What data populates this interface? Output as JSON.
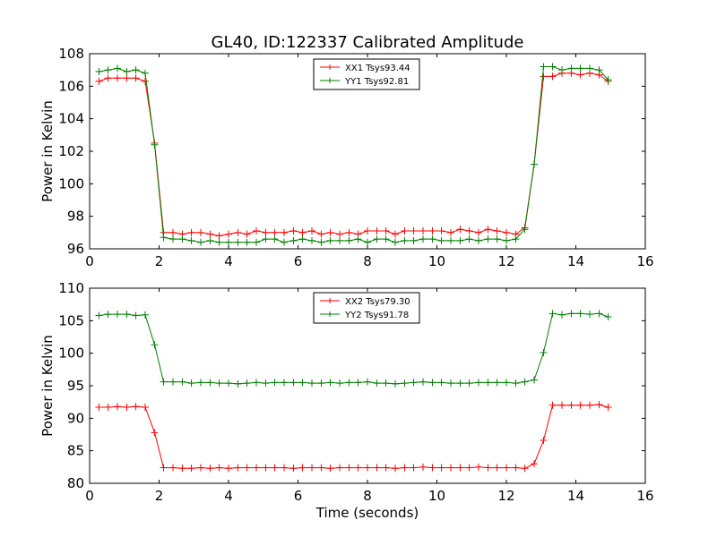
{
  "title": "GL40, ID:122337 Calibrated Amplitude",
  "chart_data": [
    {
      "type": "line",
      "title": "GL40, ID:122337 Calibrated Amplitude",
      "xlabel": "",
      "ylabel": "Power in Kelvin",
      "xlim": [
        0,
        16
      ],
      "ylim": [
        96,
        108
      ],
      "xticks": [
        "0",
        "2",
        "4",
        "6",
        "8",
        "10",
        "12",
        "14",
        "16"
      ],
      "yticks": [
        "96",
        "98",
        "100",
        "102",
        "104",
        "106",
        "108"
      ],
      "grid": false,
      "legend_position": "top-center",
      "x": [
        0.27,
        0.53,
        0.8,
        1.07,
        1.33,
        1.6,
        1.87,
        2.13,
        2.4,
        2.67,
        2.93,
        3.2,
        3.47,
        3.73,
        4.0,
        4.27,
        4.53,
        4.8,
        5.07,
        5.33,
        5.6,
        5.87,
        6.13,
        6.4,
        6.67,
        6.93,
        7.2,
        7.47,
        7.73,
        8.0,
        8.27,
        8.53,
        8.8,
        9.07,
        9.33,
        9.6,
        9.87,
        10.13,
        10.4,
        10.67,
        10.93,
        11.2,
        11.47,
        11.73,
        12.0,
        12.27,
        12.53,
        12.8,
        13.07,
        13.33,
        13.6,
        13.87,
        14.13,
        14.4,
        14.67,
        14.93
      ],
      "series": [
        {
          "name": "XX1 Tsys93.44",
          "color": "#ff0000",
          "values": [
            106.3,
            106.5,
            106.5,
            106.5,
            106.5,
            106.3,
            102.5,
            97.0,
            97.0,
            96.9,
            97.0,
            97.0,
            96.9,
            96.8,
            96.9,
            97.0,
            96.9,
            97.1,
            97.0,
            97.0,
            97.0,
            97.1,
            97.0,
            97.1,
            96.9,
            97.0,
            96.9,
            97.0,
            96.9,
            97.1,
            97.1,
            97.1,
            96.9,
            97.1,
            97.1,
            97.1,
            97.1,
            97.1,
            97.0,
            97.2,
            97.1,
            97.0,
            97.2,
            97.1,
            97.0,
            96.9,
            97.3,
            101.2,
            106.6,
            106.6,
            106.8,
            106.8,
            106.7,
            106.8,
            106.7,
            106.3
          ]
        },
        {
          "name": "YY1 Tsys92.81",
          "color": "#008000",
          "values": [
            106.9,
            107.0,
            107.1,
            106.9,
            107.0,
            106.8,
            102.4,
            96.7,
            96.6,
            96.6,
            96.5,
            96.4,
            96.5,
            96.4,
            96.4,
            96.4,
            96.4,
            96.4,
            96.6,
            96.6,
            96.4,
            96.5,
            96.6,
            96.5,
            96.4,
            96.5,
            96.5,
            96.5,
            96.6,
            96.4,
            96.6,
            96.6,
            96.4,
            96.5,
            96.5,
            96.6,
            96.6,
            96.5,
            96.5,
            96.5,
            96.6,
            96.5,
            96.6,
            96.6,
            96.5,
            96.6,
            97.2,
            101.2,
            107.2,
            107.2,
            107.0,
            107.1,
            107.1,
            107.1,
            107.0,
            106.4
          ]
        }
      ]
    },
    {
      "type": "line",
      "title": "",
      "xlabel": "Time (seconds)",
      "ylabel": "Power in Kelvin",
      "xlim": [
        0,
        16
      ],
      "ylim": [
        80,
        110
      ],
      "xticks": [
        "0",
        "2",
        "4",
        "6",
        "8",
        "10",
        "12",
        "14",
        "16"
      ],
      "yticks": [
        "80",
        "85",
        "90",
        "95",
        "100",
        "105",
        "110"
      ],
      "grid": false,
      "legend_position": "top-center",
      "x": [
        0.27,
        0.53,
        0.8,
        1.07,
        1.33,
        1.6,
        1.87,
        2.13,
        2.4,
        2.67,
        2.93,
        3.2,
        3.47,
        3.73,
        4.0,
        4.27,
        4.53,
        4.8,
        5.07,
        5.33,
        5.6,
        5.87,
        6.13,
        6.4,
        6.67,
        6.93,
        7.2,
        7.47,
        7.73,
        8.0,
        8.27,
        8.53,
        8.8,
        9.07,
        9.33,
        9.6,
        9.87,
        10.13,
        10.4,
        10.67,
        10.93,
        11.2,
        11.47,
        11.73,
        12.0,
        12.27,
        12.53,
        12.8,
        13.07,
        13.33,
        13.6,
        13.87,
        14.13,
        14.4,
        14.67,
        14.93
      ],
      "series": [
        {
          "name": "XX2 Tsys79.30",
          "color": "#ff0000",
          "values": [
            91.7,
            91.7,
            91.8,
            91.7,
            91.8,
            91.7,
            87.8,
            82.4,
            82.4,
            82.3,
            82.3,
            82.4,
            82.3,
            82.4,
            82.3,
            82.4,
            82.4,
            82.4,
            82.4,
            82.4,
            82.4,
            82.3,
            82.4,
            82.4,
            82.4,
            82.3,
            82.4,
            82.4,
            82.4,
            82.4,
            82.4,
            82.4,
            82.3,
            82.4,
            82.4,
            82.5,
            82.4,
            82.4,
            82.4,
            82.4,
            82.4,
            82.5,
            82.4,
            82.4,
            82.4,
            82.4,
            82.3,
            83.0,
            86.6,
            92.0,
            92.0,
            92.0,
            92.0,
            92.0,
            92.1,
            91.7
          ]
        },
        {
          "name": "YY2 Tsys91.78",
          "color": "#008000",
          "values": [
            105.8,
            106.0,
            106.0,
            106.0,
            105.8,
            105.9,
            101.3,
            95.6,
            95.6,
            95.6,
            95.4,
            95.5,
            95.5,
            95.4,
            95.4,
            95.3,
            95.4,
            95.5,
            95.4,
            95.5,
            95.5,
            95.5,
            95.5,
            95.4,
            95.4,
            95.5,
            95.4,
            95.5,
            95.5,
            95.6,
            95.4,
            95.4,
            95.3,
            95.4,
            95.5,
            95.6,
            95.5,
            95.5,
            95.4,
            95.4,
            95.4,
            95.5,
            95.5,
            95.5,
            95.5,
            95.4,
            95.6,
            95.9,
            100.1,
            106.1,
            105.9,
            106.1,
            106.1,
            106.0,
            106.1,
            105.6
          ]
        }
      ]
    }
  ]
}
